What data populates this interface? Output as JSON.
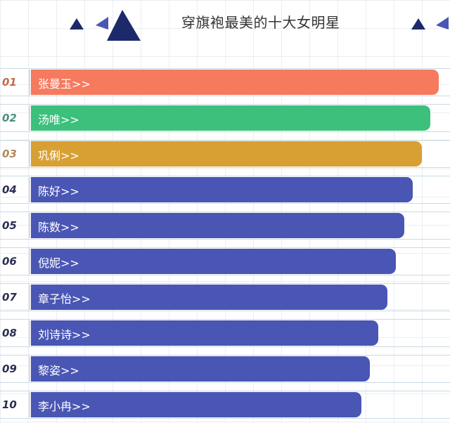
{
  "title": "穿旗袍最美的十大女明星",
  "icons": [
    "triangle-icon",
    "triangle-icon",
    "triangle-icon",
    "triangle-icon",
    "triangle-icon"
  ],
  "colors": {
    "first": "#f57a5e",
    "second": "#3cc07c",
    "third": "#d8a033",
    "rest": "#4a56b4",
    "rank_first": "#c46b48",
    "rank_second": "#4a8f7c",
    "rank_third": "#b08a58",
    "rank_rest": "#2a2f52",
    "accent_dark": "#1c2a6b"
  },
  "chart_data": {
    "type": "bar",
    "orientation": "horizontal",
    "title": "穿旗袍最美的十大女明星",
    "xlabel": "",
    "ylabel": "",
    "grid": true,
    "ranks": [
      "01",
      "02",
      "03",
      "04",
      "05",
      "06",
      "07",
      "08",
      "09",
      "10"
    ],
    "categories": [
      "张曼玉>>",
      "汤唯>>",
      "巩俐>>",
      "陈好>>",
      "陈数>>",
      "倪妮>>",
      "章子怡>>",
      "刘诗诗>>",
      "黎姿>>",
      "李小冉>>"
    ],
    "values": [
      10,
      9.8,
      9.6,
      9.4,
      9.2,
      9.0,
      8.8,
      8.6,
      8.4,
      8.2
    ]
  }
}
